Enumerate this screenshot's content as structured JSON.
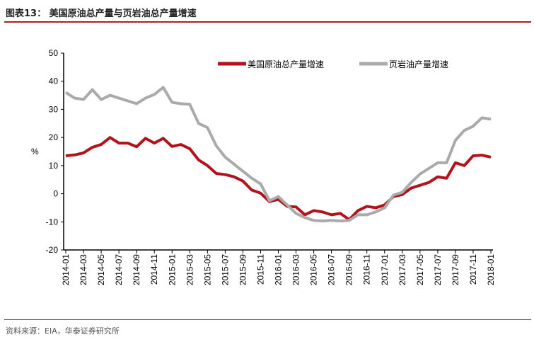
{
  "header": {
    "title": "图表13：  美国原油总产量与页岩油总产量增速"
  },
  "footer": {
    "source": "资料来源：EIA，华泰证券研究所"
  },
  "chart_data": {
    "type": "line",
    "title": "美国原油总产量与页岩油总产量增速",
    "ylabel": "%",
    "xlabel": "",
    "ylim": [
      -20,
      50
    ],
    "yticks": [
      50,
      40,
      30,
      20,
      10,
      0,
      -10,
      -20
    ],
    "xticks": [
      "2014-01",
      "2014-03",
      "2014-05",
      "2014-07",
      "2014-09",
      "2014-11",
      "2015-01",
      "2015-03",
      "2015-05",
      "2015-07",
      "2015-09",
      "2015-11",
      "2016-01",
      "2016-03",
      "2016-05",
      "2016-07",
      "2016-09",
      "2016-11",
      "2017-01",
      "2017-03",
      "2017-05",
      "2017-07",
      "2017-09",
      "2017-11",
      "2018-01"
    ],
    "legend_position": "top",
    "colors": {
      "red": "#b3121b",
      "gray": "#aaaaaa"
    },
    "series": [
      {
        "name": "美国原油总产量增速",
        "values": [
          13.5,
          13.8,
          14.5,
          16.5,
          17.5,
          20,
          18,
          18,
          16.7,
          19.7,
          18,
          19.7,
          16.8,
          17.5,
          16,
          12,
          10,
          7.2,
          6.8,
          6,
          4.5,
          1.3,
          0.2,
          -2.8,
          -2,
          -4.5,
          -4.7,
          -7.5,
          -6,
          -6.5,
          -7.5,
          -7,
          -9.2,
          -6,
          -4.5,
          -5,
          -4,
          -1,
          -0.3,
          2,
          3,
          4,
          6,
          5.5,
          11,
          10,
          13.5,
          13.7,
          13
        ]
      },
      {
        "name": "页岩油产量增速",
        "values": [
          36,
          34,
          33.5,
          37,
          33.5,
          35,
          34,
          33,
          32,
          34,
          35.3,
          37.8,
          32.5,
          32,
          31.8,
          25,
          23.5,
          17,
          13,
          10.5,
          8,
          5.5,
          3.5,
          -2.5,
          -1,
          -4,
          -7,
          -8.5,
          -9.5,
          -9.7,
          -9.5,
          -9.7,
          -9.5,
          -7.5,
          -7.5,
          -6.5,
          -5,
          -0.5,
          0.5,
          4,
          7,
          9,
          11,
          11,
          19,
          22.5,
          24,
          27,
          26.5
        ]
      }
    ]
  }
}
